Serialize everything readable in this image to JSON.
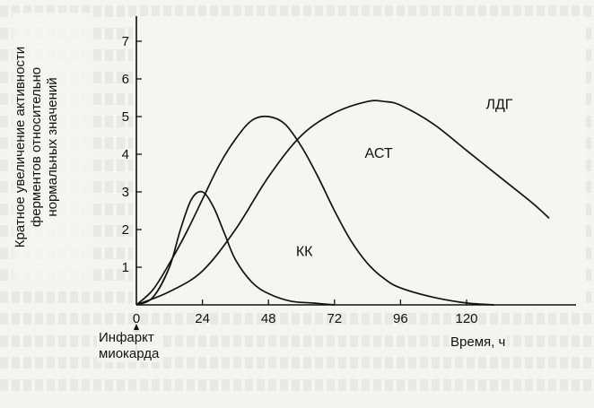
{
  "chart_data": {
    "type": "line",
    "ylabel_lines": [
      "Кратное увеличение активности",
      "ферментов относительно",
      "нормальных значений"
    ],
    "xlabel": "Время, ч",
    "annotation_lines": [
      "Инфаркт",
      "миокарда"
    ],
    "xlim": [
      0,
      150
    ],
    "ylim": [
      0,
      7.5
    ],
    "x_ticks": [
      0,
      24,
      48,
      72,
      96,
      120
    ],
    "y_ticks": [
      1,
      2,
      3,
      4,
      5,
      6,
      7
    ],
    "grid": false,
    "series": [
      {
        "name": "КК",
        "x": [
          0,
          6,
          12,
          16,
          20,
          24,
          28,
          32,
          36,
          42,
          48,
          56,
          64,
          72
        ],
        "y": [
          0,
          0.2,
          1.0,
          2.0,
          2.8,
          3.0,
          2.6,
          1.9,
          1.2,
          0.6,
          0.3,
          0.1,
          0.05,
          0
        ]
      },
      {
        "name": "АСТ",
        "x": [
          0,
          6,
          12,
          18,
          24,
          30,
          36,
          42,
          48,
          54,
          60,
          66,
          72,
          78,
          84,
          90,
          96,
          108,
          120,
          130
        ],
        "y": [
          0,
          0.4,
          1.1,
          1.9,
          2.8,
          3.7,
          4.4,
          4.9,
          5.0,
          4.8,
          4.2,
          3.4,
          2.5,
          1.7,
          1.1,
          0.7,
          0.45,
          0.2,
          0.05,
          0
        ]
      },
      {
        "name": "ЛДГ",
        "x": [
          0,
          12,
          24,
          36,
          48,
          60,
          72,
          84,
          90,
          96,
          108,
          120,
          132,
          144,
          150
        ],
        "y": [
          0,
          0.35,
          0.9,
          2.0,
          3.4,
          4.5,
          5.1,
          5.4,
          5.4,
          5.3,
          4.8,
          4.1,
          3.4,
          2.7,
          2.3
        ]
      }
    ],
    "series_label_positions": {
      "КК": {
        "x": 58,
        "y": 1.3
      },
      "АСТ": {
        "x": 83,
        "y": 3.9
      },
      "ЛДГ": {
        "x": 127,
        "y": 5.2
      }
    }
  }
}
